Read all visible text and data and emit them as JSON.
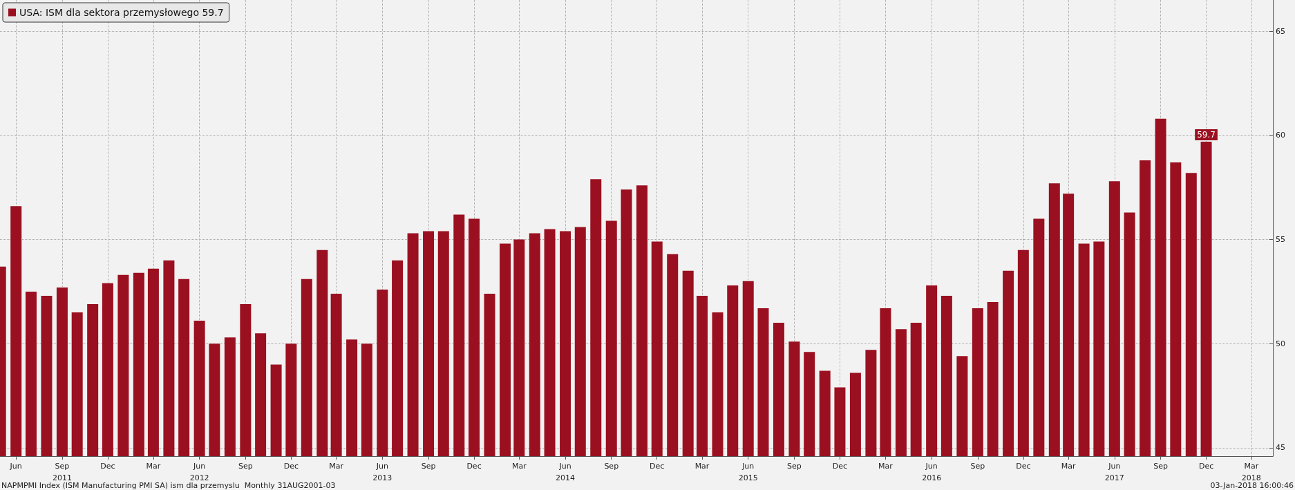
{
  "chart_data": {
    "type": "bar",
    "x": [
      "2011-05",
      "2011-06",
      "2011-07",
      "2011-08",
      "2011-09",
      "2011-10",
      "2011-11",
      "2011-12",
      "2012-01",
      "2012-02",
      "2012-03",
      "2012-04",
      "2012-05",
      "2012-06",
      "2012-07",
      "2012-08",
      "2012-09",
      "2012-10",
      "2012-11",
      "2012-12",
      "2013-01",
      "2013-02",
      "2013-03",
      "2013-04",
      "2013-05",
      "2013-06",
      "2013-07",
      "2013-08",
      "2013-09",
      "2013-10",
      "2013-11",
      "2013-12",
      "2014-01",
      "2014-02",
      "2014-03",
      "2014-04",
      "2014-05",
      "2014-06",
      "2014-07",
      "2014-08",
      "2014-09",
      "2014-10",
      "2014-11",
      "2014-12",
      "2015-01",
      "2015-02",
      "2015-03",
      "2015-04",
      "2015-05",
      "2015-06",
      "2015-07",
      "2015-08",
      "2015-09",
      "2015-10",
      "2015-11",
      "2015-12",
      "2016-01",
      "2016-02",
      "2016-03",
      "2016-04",
      "2016-05",
      "2016-06",
      "2016-07",
      "2016-08",
      "2016-09",
      "2016-10",
      "2016-11",
      "2016-12",
      "2017-01",
      "2017-02",
      "2017-03",
      "2017-04",
      "2017-05",
      "2017-06",
      "2017-07",
      "2017-08",
      "2017-09",
      "2017-10",
      "2017-11",
      "2017-12"
    ],
    "series": [
      {
        "name": "USA: ISM dla sektora przemysłowego 59.7",
        "color": "#9b1020",
        "values": [
          53.7,
          56.6,
          52.5,
          52.3,
          52.7,
          51.5,
          51.9,
          52.9,
          53.3,
          53.4,
          53.6,
          54.0,
          53.1,
          51.1,
          50.0,
          50.3,
          51.9,
          50.5,
          49.0,
          50.0,
          53.1,
          54.5,
          52.4,
          50.2,
          50.0,
          52.6,
          54.0,
          55.3,
          55.4,
          55.4,
          56.2,
          56.0,
          52.4,
          54.8,
          55.0,
          55.3,
          55.5,
          55.4,
          55.6,
          57.9,
          55.9,
          57.4,
          57.6,
          54.9,
          54.3,
          53.5,
          52.3,
          51.5,
          52.8,
          53.0,
          51.7,
          51.0,
          50.1,
          49.6,
          48.7,
          47.9,
          48.6,
          49.7,
          51.7,
          50.7,
          51.0,
          52.8,
          52.3,
          49.4,
          51.7,
          52.0,
          53.5,
          54.5,
          56.0,
          57.7,
          57.2,
          54.8,
          54.9,
          57.8,
          56.3,
          58.8,
          60.8,
          58.7,
          58.2,
          59.7
        ],
        "value_labels": [
          null,
          null,
          null,
          null,
          null,
          null,
          null,
          null,
          null,
          null,
          null,
          null,
          null,
          null,
          null,
          null,
          null,
          null,
          null,
          null,
          null,
          null,
          null,
          null,
          null,
          null,
          null,
          null,
          null,
          null,
          null,
          null,
          null,
          null,
          null,
          null,
          null,
          null,
          null,
          null,
          null,
          null,
          null,
          null,
          null,
          null,
          null,
          null,
          null,
          null,
          null,
          null,
          null,
          null,
          null,
          null,
          null,
          null,
          null,
          null,
          null,
          null,
          null,
          null,
          null,
          null,
          null,
          null,
          null,
          null,
          null,
          null,
          null,
          null,
          null,
          null,
          null,
          null,
          null,
          "59.7"
        ]
      }
    ],
    "xlim": [
      "2011-04-30",
      "2018-04-13"
    ],
    "xticks": [
      {
        "value": "2011-06",
        "label": "Jun"
      },
      {
        "value": "2011-09",
        "label": "Sep\n2011"
      },
      {
        "value": "2011-12",
        "label": "Dec"
      },
      {
        "value": "2012-03",
        "label": "Mar"
      },
      {
        "value": "2012-06",
        "label": "Jun\n2012"
      },
      {
        "value": "2012-09",
        "label": "Sep"
      },
      {
        "value": "2012-12",
        "label": "Dec"
      },
      {
        "value": "2013-03",
        "label": "Mar"
      },
      {
        "value": "2013-06",
        "label": "Jun\n2013"
      },
      {
        "value": "2013-09",
        "label": "Sep"
      },
      {
        "value": "2013-12",
        "label": "Dec"
      },
      {
        "value": "2014-03",
        "label": "Mar"
      },
      {
        "value": "2014-06",
        "label": "Jun\n2014"
      },
      {
        "value": "2014-09",
        "label": "Sep"
      },
      {
        "value": "2014-12",
        "label": "Dec"
      },
      {
        "value": "2015-03",
        "label": "Mar"
      },
      {
        "value": "2015-06",
        "label": "Jun\n2015"
      },
      {
        "value": "2015-09",
        "label": "Sep"
      },
      {
        "value": "2015-12",
        "label": "Dec"
      },
      {
        "value": "2016-03",
        "label": "Mar"
      },
      {
        "value": "2016-06",
        "label": "Jun\n2016"
      },
      {
        "value": "2016-09",
        "label": "Sep"
      },
      {
        "value": "2016-12",
        "label": "Dec"
      },
      {
        "value": "2017-03",
        "label": "Mar"
      },
      {
        "value": "2017-06",
        "label": "Jun\n2017"
      },
      {
        "value": "2017-09",
        "label": "Sep"
      },
      {
        "value": "2017-12",
        "label": "Dec"
      },
      {
        "value": "2018-03",
        "label": "Mar\n2018"
      }
    ],
    "ylim": [
      44.6,
      66.5
    ],
    "yticks": [
      45,
      50,
      55,
      60,
      65
    ],
    "grid": true,
    "legend": "top left",
    "annotations": [
      "NAPMPMI Index (ISM Manufacturing PMI SA) ism dla przemyslu  Monthly 31AUG2001-03",
      "03-Jan-2018 16:00:46"
    ]
  }
}
